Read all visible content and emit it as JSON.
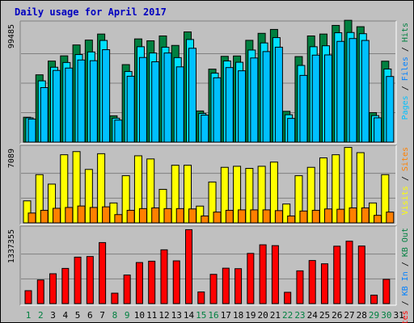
{
  "chart_data": {
    "type": "bar",
    "title": "Daily usage for April 2017",
    "days": [
      "1",
      "2",
      "3",
      "4",
      "5",
      "6",
      "7",
      "8",
      "9",
      "10",
      "11",
      "12",
      "13",
      "14",
      "15",
      "16",
      "17",
      "18",
      "19",
      "20",
      "21",
      "22",
      "23",
      "24",
      "25",
      "26",
      "27",
      "28",
      "29",
      "30",
      "31"
    ],
    "weekend_days": [
      1,
      2,
      8,
      9,
      15,
      16,
      22,
      23,
      29,
      30
    ],
    "colors": {
      "title": "#0000c0",
      "hits": "#008040",
      "files": "#00e0ff",
      "pages": "#00c0ff",
      "visits": "#ffff00",
      "sites": "#ff8000",
      "kbytes": "#ff0000",
      "weekday_label": "#000000",
      "weekend_label": "#008040"
    },
    "top_panel": {
      "max_label": "99485",
      "ymax": 99485,
      "legend": [
        {
          "text": "Pages",
          "color": "#00c0ff"
        },
        {
          "text": " / ",
          "color": "#000000"
        },
        {
          "text": "Files",
          "color": "#0080ff"
        },
        {
          "text": " / ",
          "color": "#000000"
        },
        {
          "text": "Hits",
          "color": "#008040"
        }
      ],
      "series": [
        {
          "name": "Hits",
          "values": [
            21000,
            56800,
            68400,
            72800,
            82000,
            86100,
            91200,
            22200,
            65400,
            87100,
            85500,
            89600,
            81600,
            93000,
            26300,
            61600,
            72400,
            72700,
            85900,
            91800,
            95100,
            26000,
            72200,
            89600,
            91200,
            98500,
            102800,
            97400,
            24900,
            68300,
            0
          ]
        },
        {
          "name": "Files",
          "values": [
            20500,
            51700,
            63200,
            67200,
            73900,
            76100,
            85800,
            20200,
            59600,
            80500,
            75200,
            80100,
            71300,
            86600,
            24200,
            58200,
            68500,
            67400,
            77700,
            83700,
            88200,
            23100,
            64700,
            80500,
            81300,
            92300,
            92500,
            91500,
            22400,
            61700,
            0
          ]
        },
        {
          "name": "Pages",
          "values": [
            19500,
            46000,
            60500,
            62500,
            69300,
            68700,
            78000,
            18600,
            55600,
            71400,
            67800,
            75200,
            63500,
            79200,
            22800,
            54300,
            62900,
            60200,
            71000,
            76400,
            80100,
            20000,
            56300,
            73400,
            73600,
            85000,
            87400,
            85800,
            20500,
            55400,
            0
          ]
        }
      ]
    },
    "middle_panel": {
      "max_label": "7089",
      "ymax": 7089,
      "legend": [
        {
          "text": "Visits",
          "color": "#ffff00"
        },
        {
          "text": " / ",
          "color": "#000000"
        },
        {
          "text": "Sites",
          "color": "#ff8000"
        }
      ],
      "series": [
        {
          "name": "Visits",
          "values": [
            2100,
            4600,
            3700,
            6500,
            6800,
            5100,
            6600,
            1900,
            4500,
            6400,
            6100,
            3200,
            5500,
            5500,
            1600,
            3900,
            5300,
            5400,
            5200,
            5400,
            5800,
            1800,
            4500,
            5300,
            6200,
            6500,
            7200,
            6700,
            1900,
            4600,
            0
          ]
        },
        {
          "name": "Sites",
          "values": [
            940,
            1200,
            1390,
            1470,
            1610,
            1470,
            1530,
            790,
            1200,
            1360,
            1430,
            1360,
            1360,
            1330,
            660,
            1030,
            1200,
            1240,
            1240,
            1240,
            1170,
            660,
            1130,
            1200,
            1330,
            1300,
            1430,
            1430,
            720,
            1030,
            0
          ]
        }
      ]
    },
    "bottom_panel": {
      "max_label": "1337355",
      "ymax": 1337355,
      "legend": [
        {
          "text": "KBytes",
          "color": "#ff0000"
        },
        {
          "text": " / ",
          "color": "#000000"
        },
        {
          "text": "KB In",
          "color": "#0080ff"
        },
        {
          "text": " / ",
          "color": "#000000"
        },
        {
          "text": "KB Out",
          "color": "#008040"
        }
      ],
      "series": [
        {
          "name": "KBytes",
          "values": [
            233000,
            426000,
            538000,
            634000,
            837000,
            848000,
            1099000,
            188000,
            515000,
            740000,
            764000,
            969000,
            770000,
            1331000,
            210000,
            527000,
            638000,
            629000,
            904000,
            1059000,
            1044000,
            204000,
            590000,
            776000,
            717000,
            1034000,
            1124000,
            1037000,
            153000,
            437000,
            0
          ]
        }
      ]
    }
  }
}
